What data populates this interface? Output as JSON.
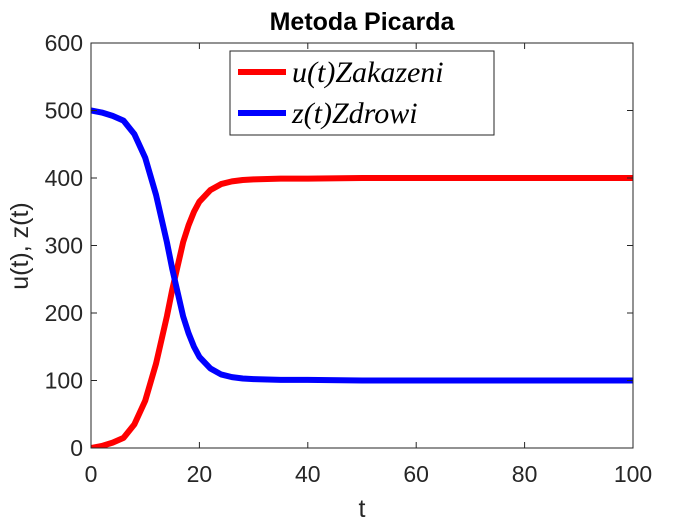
{
  "chart_data": {
    "type": "line",
    "title": "Metoda Picarda",
    "xlabel": "t",
    "ylabel": "u(t), z(t)",
    "xlim": [
      0,
      100
    ],
    "ylim": [
      0,
      600
    ],
    "xticks": [
      0,
      20,
      40,
      60,
      80,
      100
    ],
    "yticks": [
      0,
      100,
      200,
      300,
      400,
      500,
      600
    ],
    "xtick_labels": [
      "0",
      "20",
      "40",
      "60",
      "80",
      "100"
    ],
    "ytick_labels": [
      "0",
      "100",
      "200",
      "300",
      "400",
      "500",
      "600"
    ],
    "grid": false,
    "legend_position": "top-right",
    "series": [
      {
        "name": "u(t)Zakazeni",
        "color": "#ff0000",
        "x": [
          0,
          2,
          4,
          6,
          8,
          10,
          12,
          13,
          14,
          15,
          16,
          17,
          18,
          19,
          20,
          22,
          24,
          26,
          28,
          30,
          35,
          40,
          50,
          60,
          70,
          80,
          90,
          100
        ],
        "y": [
          0,
          3,
          8,
          15,
          35,
          70,
          125,
          160,
          195,
          235,
          270,
          305,
          330,
          350,
          365,
          382,
          391,
          395,
          397,
          398,
          399,
          399,
          400,
          400,
          400,
          400,
          400,
          400
        ]
      },
      {
        "name": "z(t)Zdrowi",
        "color": "#0000ff",
        "x": [
          0,
          2,
          4,
          6,
          8,
          10,
          12,
          13,
          14,
          15,
          16,
          17,
          18,
          19,
          20,
          22,
          24,
          26,
          28,
          30,
          35,
          40,
          50,
          60,
          70,
          80,
          90,
          100
        ],
        "y": [
          500,
          497,
          492,
          485,
          465,
          430,
          375,
          340,
          305,
          265,
          230,
          195,
          170,
          150,
          135,
          118,
          109,
          105,
          103,
          102,
          101,
          101,
          100,
          100,
          100,
          100,
          100,
          100
        ]
      }
    ]
  }
}
